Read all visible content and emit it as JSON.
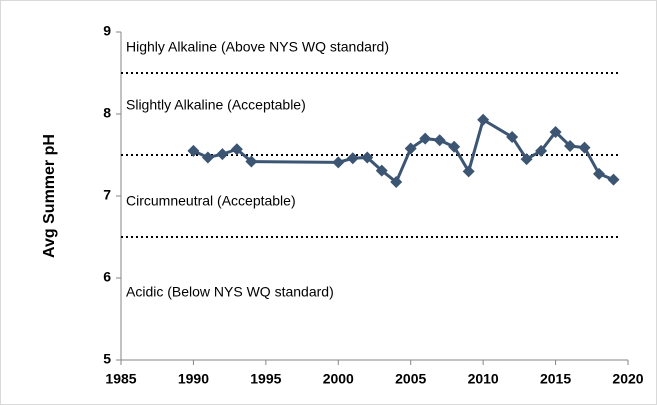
{
  "chart_data": {
    "type": "line",
    "y_label": "Avg Summer pH",
    "x": [
      1990,
      1991,
      1992,
      1993,
      1994,
      2000,
      2001,
      2002,
      2003,
      2004,
      2005,
      2006,
      2007,
      2008,
      2009,
      2010,
      2012,
      2013,
      2014,
      2015,
      2016,
      2017,
      2018,
      2019
    ],
    "series": [
      {
        "color": "#3b5573",
        "values": [
          7.55,
          7.47,
          7.51,
          7.57,
          7.42,
          7.41,
          7.46,
          7.47,
          7.31,
          7.17,
          7.58,
          7.7,
          7.68,
          7.6,
          7.3,
          7.93,
          7.72,
          7.45,
          7.55,
          7.78,
          7.61,
          7.59,
          7.27,
          7.2
        ]
      }
    ],
    "xlim": [
      1985,
      2020
    ],
    "xticks": [
      1985,
      1990,
      1995,
      2000,
      2005,
      2010,
      2015,
      2020
    ],
    "ylim": [
      5,
      9
    ],
    "yticks": [
      5,
      6,
      7,
      8,
      9
    ],
    "reference_lines": [
      8.5,
      7.5,
      6.5
    ],
    "annotations": [
      "Highly Alkaline (Above NYS WQ standard)",
      "Slightly Alkaline (Acceptable)",
      "Circumneutral (Acceptable)",
      "Acidic (Below NYS WQ standard)"
    ]
  }
}
